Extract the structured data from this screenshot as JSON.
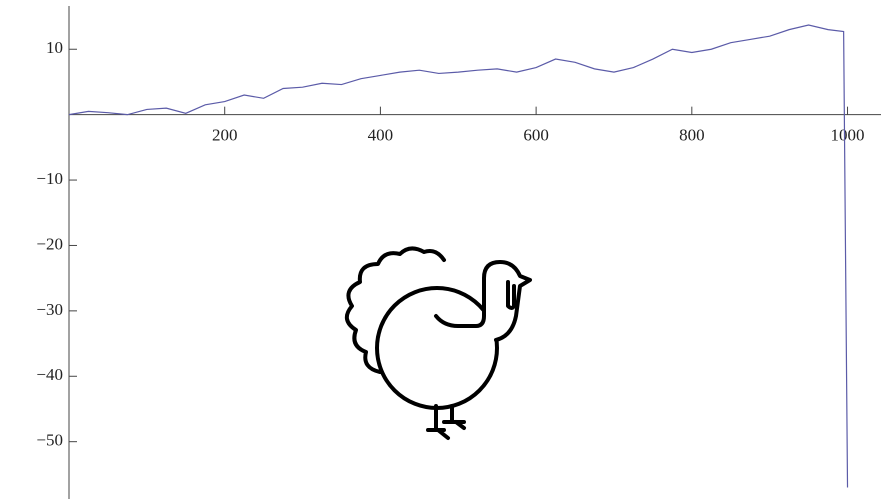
{
  "chart_data": {
    "type": "line",
    "x": [
      0,
      25,
      50,
      75,
      100,
      125,
      150,
      175,
      200,
      225,
      250,
      275,
      300,
      325,
      350,
      375,
      400,
      425,
      450,
      475,
      500,
      525,
      550,
      575,
      600,
      625,
      650,
      675,
      700,
      725,
      750,
      775,
      800,
      825,
      850,
      875,
      900,
      925,
      950,
      975,
      995,
      1000
    ],
    "series": [
      {
        "color": "#5b5ba8",
        "values": [
          0,
          0.5,
          0.3,
          0,
          0.8,
          1,
          0.2,
          1.5,
          2,
          3,
          2.5,
          4,
          4.2,
          4.8,
          4.6,
          5.5,
          6,
          6.5,
          6.8,
          6.3,
          6.5,
          6.8,
          7,
          6.5,
          7.2,
          8.5,
          8,
          7,
          6.5,
          7.2,
          8.5,
          10,
          9.5,
          10,
          11,
          11.5,
          12,
          13,
          13.7,
          13,
          12.7,
          -57
        ]
      }
    ],
    "xlim": [
      0,
      1043
    ],
    "ylim": [
      -58,
      16
    ],
    "xticks": [
      200,
      400,
      600,
      800,
      1000
    ],
    "yticks": [
      {
        "value": -50,
        "label": "−50"
      },
      {
        "value": -40,
        "label": "−40"
      },
      {
        "value": -30,
        "label": "−30"
      },
      {
        "value": -20,
        "label": "−20"
      },
      {
        "value": -10,
        "label": "−10"
      },
      10
    ]
  }
}
